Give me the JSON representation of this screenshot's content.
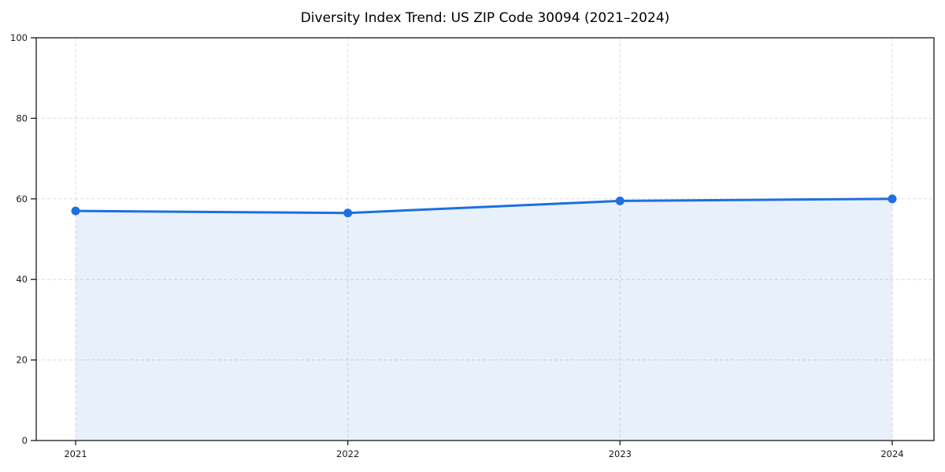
{
  "chart_data": {
    "type": "area",
    "title": "Diversity Index Trend: US ZIP Code 30094 (2021–2024)",
    "x": [
      2021,
      2022,
      2023,
      2024
    ],
    "series": [
      {
        "name": "Diversity Index",
        "values": [
          57.0,
          56.5,
          59.5,
          60.0
        ]
      }
    ],
    "xlabel": "",
    "ylabel": "",
    "ylim": [
      0,
      100
    ],
    "yticks": [
      0,
      20,
      40,
      60,
      80,
      100
    ],
    "xtick_labels": [
      "2021",
      "2022",
      "2023",
      "2024"
    ],
    "grid": "dashed",
    "legend": "none",
    "colors": {
      "line": "#1d6fe0",
      "marker": "#1d6fe0",
      "fill": "rgba(29, 111, 224, 0.10)",
      "grid": "#dcdcdc",
      "axis": "#1a1a1a",
      "text": "#1a1a1a",
      "background": "#ffffff"
    }
  }
}
